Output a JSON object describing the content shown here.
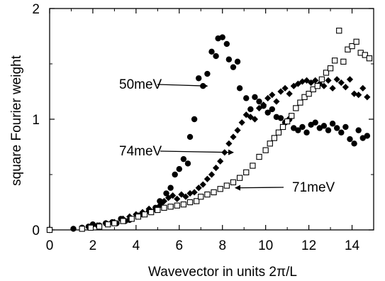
{
  "chart_data": {
    "type": "scatter",
    "title": "",
    "xlabel": "Wavevector in units 2π/L",
    "ylabel": "square Fourier weight",
    "xlim": [
      0,
      15
    ],
    "ylim": [
      0,
      2
    ],
    "xticks": [
      0,
      2,
      4,
      6,
      8,
      10,
      12,
      14
    ],
    "yticks": [
      0,
      1,
      2
    ],
    "grid": false,
    "legend": "none",
    "annotations": [
      {
        "text": "50meV",
        "series": "50meV",
        "target": [
          7.3,
          1.3
        ]
      },
      {
        "text": "74meV",
        "series": "74meV",
        "target": [
          8.5,
          0.7
        ]
      },
      {
        "text": "71meV",
        "series": "71meV",
        "target": [
          8.6,
          0.38
        ]
      }
    ],
    "series": [
      {
        "name": "50meV",
        "marker": "filled-circle",
        "color": "#000000",
        "points": [
          [
            0,
            0.0
          ],
          [
            1.1,
            0.01
          ],
          [
            1.5,
            0.02
          ],
          [
            1.8,
            0.03
          ],
          [
            2.0,
            0.05
          ],
          [
            2.3,
            0.04
          ],
          [
            2.6,
            0.06
          ],
          [
            2.9,
            0.07
          ],
          [
            3.1,
            0.06
          ],
          [
            3.3,
            0.1
          ],
          [
            3.5,
            0.08
          ],
          [
            3.7,
            0.09
          ],
          [
            4.1,
            0.13
          ],
          [
            4.3,
            0.14
          ],
          [
            4.6,
            0.17
          ],
          [
            4.9,
            0.2
          ],
          [
            5.1,
            0.26
          ],
          [
            5.2,
            0.25
          ],
          [
            5.4,
            0.33
          ],
          [
            5.6,
            0.38
          ],
          [
            5.8,
            0.5
          ],
          [
            6.0,
            0.55
          ],
          [
            6.2,
            0.64
          ],
          [
            6.4,
            0.6
          ],
          [
            6.5,
            0.84
          ],
          [
            6.7,
            1.0
          ],
          [
            6.9,
            1.37
          ],
          [
            7.1,
            1.3
          ],
          [
            7.3,
            1.41
          ],
          [
            7.5,
            1.61
          ],
          [
            7.7,
            1.57
          ],
          [
            7.8,
            1.73
          ],
          [
            8.0,
            1.74
          ],
          [
            8.2,
            1.68
          ],
          [
            8.3,
            1.54
          ],
          [
            8.5,
            1.47
          ],
          [
            8.7,
            1.52
          ],
          [
            8.8,
            1.28
          ],
          [
            9.1,
            1.19
          ],
          [
            9.3,
            1.09
          ],
          [
            9.5,
            1.2
          ],
          [
            9.7,
            1.16
          ],
          [
            9.9,
            1.12
          ],
          [
            10.1,
            1.06
          ],
          [
            10.3,
            1.09
          ],
          [
            10.5,
            1.02
          ],
          [
            10.7,
            1.01
          ],
          [
            10.9,
            0.97
          ],
          [
            11.1,
            1.0
          ],
          [
            11.3,
            0.92
          ],
          [
            11.5,
            0.9
          ],
          [
            11.7,
            0.93
          ],
          [
            11.9,
            0.88
          ],
          [
            12.1,
            0.95
          ],
          [
            12.3,
            0.97
          ],
          [
            12.5,
            0.92
          ],
          [
            12.7,
            0.94
          ],
          [
            12.9,
            0.9
          ],
          [
            13.1,
            0.96
          ],
          [
            13.3,
            0.92
          ],
          [
            13.5,
            0.88
          ],
          [
            13.7,
            0.93
          ],
          [
            13.9,
            0.82
          ],
          [
            14.1,
            0.78
          ],
          [
            14.3,
            0.9
          ],
          [
            14.5,
            0.83
          ],
          [
            14.7,
            0.85
          ]
        ]
      },
      {
        "name": "74meV",
        "marker": "filled-diamond",
        "color": "#000000",
        "points": [
          [
            2.2,
            0.04
          ],
          [
            2.6,
            0.06
          ],
          [
            3.0,
            0.07
          ],
          [
            3.4,
            0.1
          ],
          [
            3.7,
            0.12
          ],
          [
            4.0,
            0.14
          ],
          [
            4.3,
            0.16
          ],
          [
            4.6,
            0.19
          ],
          [
            4.9,
            0.18
          ],
          [
            5.1,
            0.22
          ],
          [
            5.3,
            0.26
          ],
          [
            5.5,
            0.29
          ],
          [
            5.7,
            0.31
          ],
          [
            5.9,
            0.28
          ],
          [
            6.1,
            0.32
          ],
          [
            6.3,
            0.3
          ],
          [
            6.5,
            0.33
          ],
          [
            6.7,
            0.34
          ],
          [
            6.9,
            0.38
          ],
          [
            7.1,
            0.41
          ],
          [
            7.3,
            0.46
          ],
          [
            7.5,
            0.5
          ],
          [
            7.7,
            0.56
          ],
          [
            7.9,
            0.62
          ],
          [
            8.1,
            0.7
          ],
          [
            8.3,
            0.78
          ],
          [
            8.5,
            0.84
          ],
          [
            8.7,
            0.9
          ],
          [
            8.9,
            0.97
          ],
          [
            9.1,
            1.04
          ],
          [
            9.3,
            1.02
          ],
          [
            9.5,
            1.0
          ],
          [
            9.7,
            1.1
          ],
          [
            9.9,
            1.13
          ],
          [
            10.1,
            1.19
          ],
          [
            10.3,
            1.22
          ],
          [
            10.5,
            1.16
          ],
          [
            10.7,
            1.25
          ],
          [
            10.9,
            1.28
          ],
          [
            11.1,
            1.23
          ],
          [
            11.3,
            1.3
          ],
          [
            11.5,
            1.32
          ],
          [
            11.7,
            1.34
          ],
          [
            11.9,
            1.35
          ],
          [
            12.1,
            1.33
          ],
          [
            12.3,
            1.35
          ],
          [
            12.5,
            1.32
          ],
          [
            12.7,
            1.3
          ],
          [
            12.9,
            1.35
          ],
          [
            13.1,
            1.28
          ],
          [
            13.3,
            1.36
          ],
          [
            13.5,
            1.33
          ],
          [
            13.7,
            1.29
          ],
          [
            13.9,
            1.36
          ],
          [
            14.1,
            1.23
          ],
          [
            14.3,
            1.22
          ],
          [
            14.5,
            1.28
          ],
          [
            14.7,
            1.2
          ]
        ]
      },
      {
        "name": "71meV",
        "marker": "open-square",
        "color": "#000000",
        "points": [
          [
            0,
            0.0
          ],
          [
            1.5,
            0.01
          ],
          [
            1.9,
            0.02
          ],
          [
            2.3,
            0.03
          ],
          [
            2.7,
            0.05
          ],
          [
            3.0,
            0.06
          ],
          [
            3.4,
            0.08
          ],
          [
            3.8,
            0.1
          ],
          [
            4.1,
            0.12
          ],
          [
            4.4,
            0.14
          ],
          [
            4.7,
            0.16
          ],
          [
            5.0,
            0.18
          ],
          [
            5.3,
            0.2
          ],
          [
            5.6,
            0.21
          ],
          [
            5.9,
            0.22
          ],
          [
            6.2,
            0.23
          ],
          [
            6.5,
            0.25
          ],
          [
            6.8,
            0.26
          ],
          [
            7.0,
            0.3
          ],
          [
            7.3,
            0.32
          ],
          [
            7.6,
            0.34
          ],
          [
            7.9,
            0.37
          ],
          [
            8.2,
            0.4
          ],
          [
            8.5,
            0.43
          ],
          [
            8.8,
            0.47
          ],
          [
            9.1,
            0.52
          ],
          [
            9.4,
            0.58
          ],
          [
            9.7,
            0.66
          ],
          [
            10.0,
            0.72
          ],
          [
            10.2,
            0.78
          ],
          [
            10.4,
            0.83
          ],
          [
            10.6,
            0.88
          ],
          [
            10.8,
            0.93
          ],
          [
            11.0,
            0.98
          ],
          [
            11.2,
            1.03
          ],
          [
            11.4,
            1.1
          ],
          [
            11.6,
            1.15
          ],
          [
            11.8,
            1.2
          ],
          [
            12.0,
            1.23
          ],
          [
            12.2,
            1.27
          ],
          [
            12.4,
            1.3
          ],
          [
            12.6,
            1.36
          ],
          [
            12.8,
            1.42
          ],
          [
            13.0,
            1.46
          ],
          [
            13.2,
            1.53
          ],
          [
            13.4,
            1.8
          ],
          [
            13.6,
            1.52
          ],
          [
            13.8,
            1.63
          ],
          [
            14.0,
            1.66
          ],
          [
            14.2,
            1.7
          ],
          [
            14.4,
            1.6
          ],
          [
            14.6,
            1.58
          ],
          [
            14.8,
            1.55
          ]
        ]
      }
    ]
  }
}
